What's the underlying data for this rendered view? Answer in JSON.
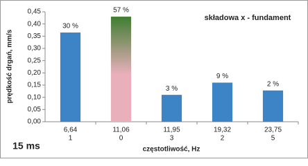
{
  "chart_data": {
    "type": "bar",
    "annotation": "składowa  x - fundament",
    "corner_label": "15 ms",
    "y_label": "prędkość drgań, mm/s",
    "x_label": "częstotliwość, Hz",
    "categories": [
      "6,64",
      "11,06",
      "11,95",
      "19,32",
      "23,75"
    ],
    "category_sublabels": [
      "1",
      "0",
      "3",
      "2",
      "5"
    ],
    "values": [
      0.365,
      0.43,
      0.11,
      0.16,
      0.128
    ],
    "bar_labels": [
      "30 %",
      "57 %",
      "3 %",
      "9 %",
      "2 %"
    ],
    "colors": [
      "#3c84c6",
      {
        "gradient": [
          "#3f7d31",
          "#e9b0bc"
        ]
      },
      "#3c84c6",
      "#3c84c6",
      "#3c84c6"
    ],
    "ylim": [
      0,
      0.45
    ],
    "yticks": [
      {
        "value": 0,
        "label": "0,00"
      },
      {
        "value": 0.05,
        "label": "0,05"
      },
      {
        "value": 0.1,
        "label": "0,10"
      },
      {
        "value": 0.15,
        "label": "0,15"
      },
      {
        "value": 0.2,
        "label": "0,20"
      },
      {
        "value": 0.25,
        "label": "0,25"
      },
      {
        "value": 0.3,
        "label": "0,30"
      },
      {
        "value": 0.35,
        "label": "0,35"
      },
      {
        "value": 0.4,
        "label": "0,40"
      },
      {
        "value": 0.45,
        "label": "0,45"
      }
    ],
    "grid": false
  }
}
